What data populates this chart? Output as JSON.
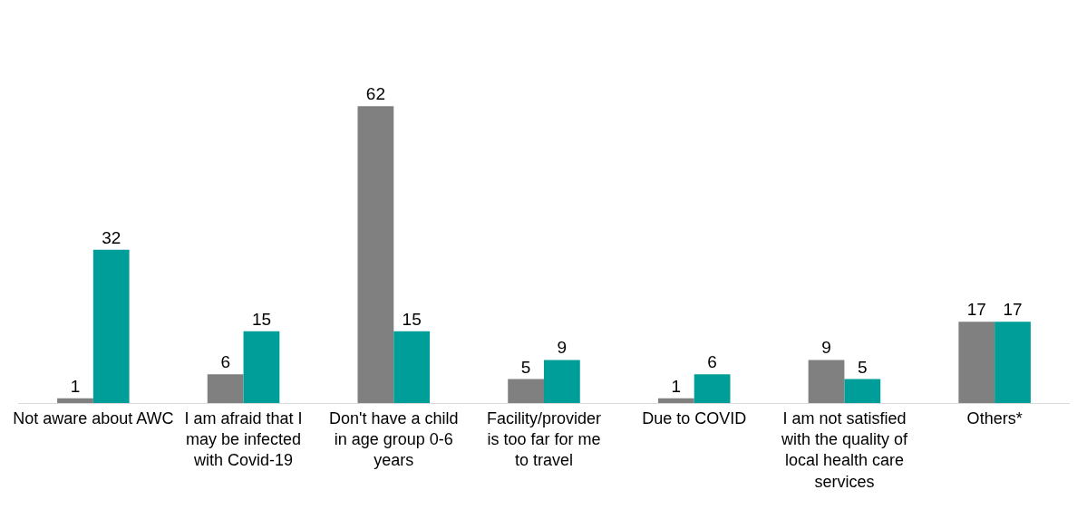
{
  "chart_data": {
    "type": "bar",
    "categories": [
      "Not aware about AWC",
      "I am afraid that I may be infected with Covid-19",
      "Don't have a child in age group 0-6 years",
      "Facility/provider is too far for me to travel",
      "Due to COVID",
      "I am not satisfied with the quality of local health care services",
      "Others*"
    ],
    "series": [
      {
        "color": "#808080",
        "values": [
          1,
          6,
          62,
          5,
          1,
          9,
          17
        ]
      },
      {
        "color": "#009e99",
        "values": [
          32,
          15,
          15,
          9,
          6,
          5,
          17
        ]
      }
    ],
    "data_labels": true
  }
}
